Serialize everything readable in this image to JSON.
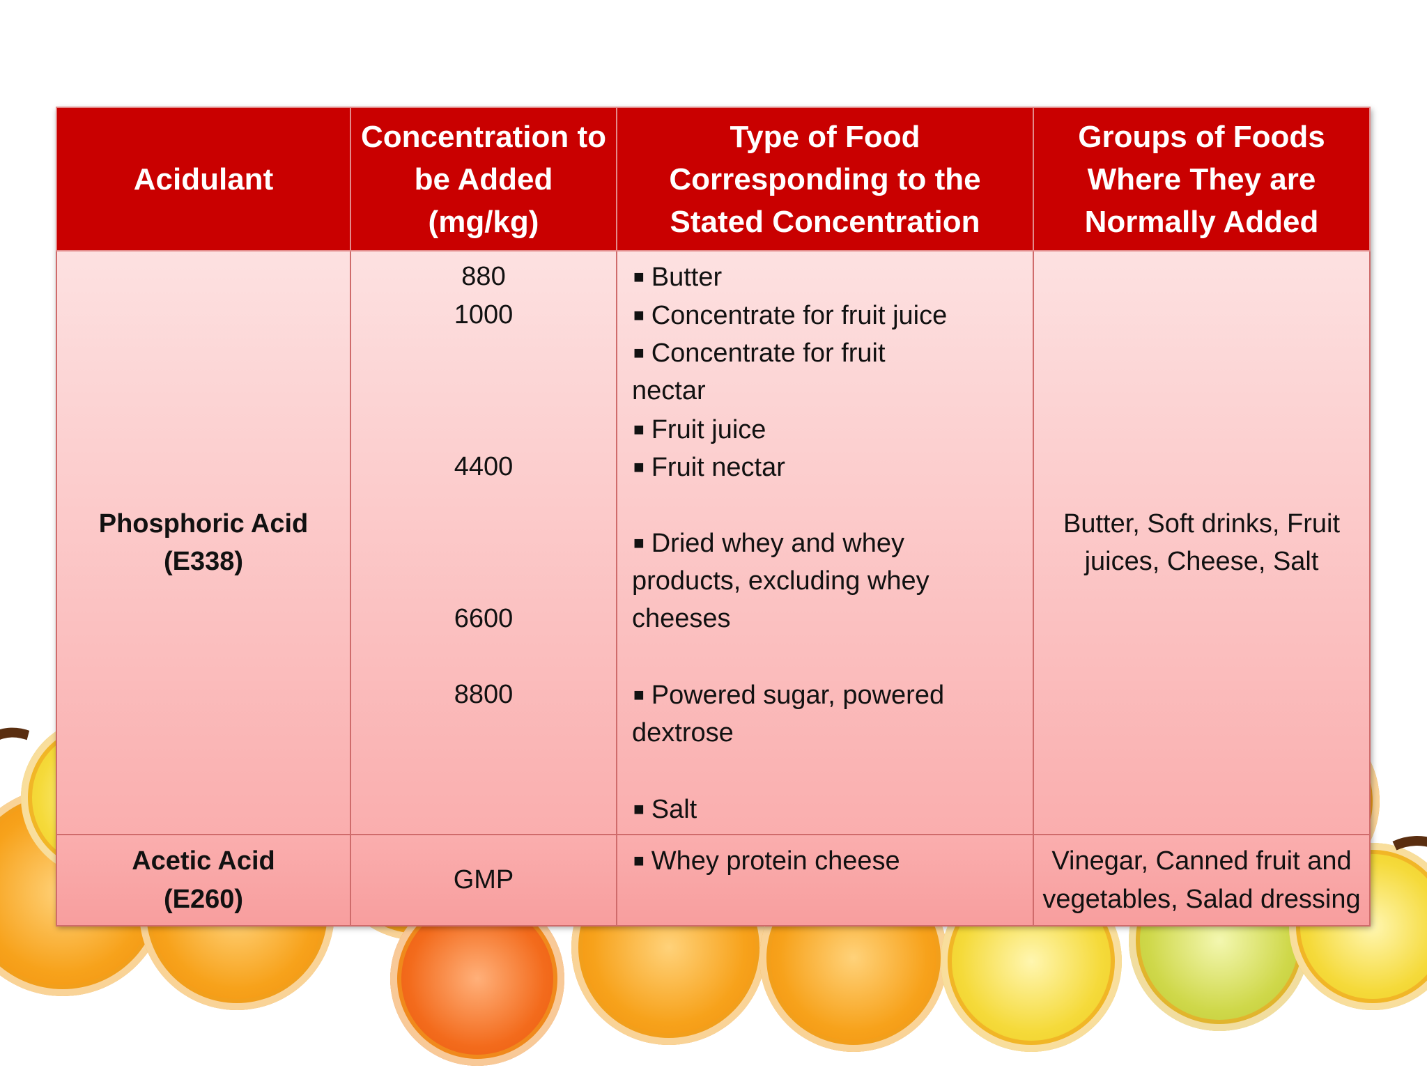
{
  "table": {
    "headers": [
      "Acidulant",
      "Concentration to be Added (mg/kg)",
      "Type of Food Corresponding to the Stated Concentration",
      "Groups of Foods Where They are Normally Added"
    ],
    "rows": [
      {
        "acidulant_name": "Phosphoric Acid",
        "acidulant_code": "(E338)",
        "concentrations": [
          "880",
          "1000",
          "4400",
          "6600",
          "8800"
        ],
        "foods": [
          "Butter",
          "Concentrate for fruit juice",
          "Concentrate for fruit",
          "nectar",
          "Fruit juice",
          "Fruit nectar",
          "Dried whey and whey",
          "products, excluding whey",
          "cheeses",
          "Powered sugar, powered",
          "dextrose",
          "Salt"
        ],
        "groups": [
          "Butter, Soft drinks, Fruit",
          "juices, Cheese, Salt"
        ]
      },
      {
        "acidulant_name": "Acetic Acid",
        "acidulant_code": "(E260)",
        "concentrations": [
          "GMP"
        ],
        "foods": [
          "Whey protein cheese"
        ],
        "groups": [
          "Vinegar, Canned fruit and",
          "vegetables, Salad dressing"
        ]
      }
    ],
    "bullet_glyph": "■"
  },
  "colors": {
    "header_bg": "#c90000",
    "row_gradient_top": "#fde1e1",
    "row_gradient_bottom": "#faaeae"
  }
}
